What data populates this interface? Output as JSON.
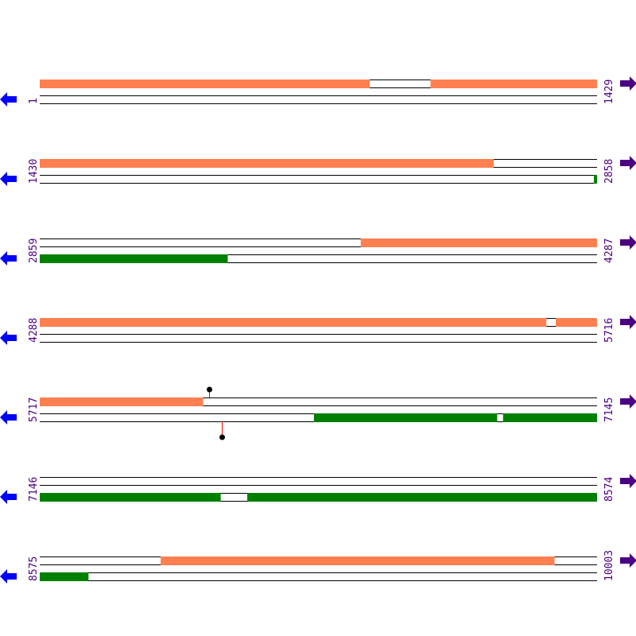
{
  "map": {
    "bp_per_row": 1429,
    "colors": {
      "forward": "#ff7f50",
      "reverse": "#008000",
      "label": "#4b0082",
      "left_arrow": "#0000ff",
      "right_arrow": "#4b0082",
      "lollipop": "#ff0000"
    },
    "rows": [
      {
        "start": "1",
        "end": "1429",
        "forward": [
          [
            1,
            846
          ],
          [
            1003,
            1429
          ]
        ],
        "reverse": []
      },
      {
        "start": "1430",
        "end": "2858",
        "forward": [
          [
            1430,
            2593
          ]
        ],
        "reverse": [
          [
            2851,
            2858
          ]
        ]
      },
      {
        "start": "2859",
        "end": "4287",
        "forward": [
          [
            3682,
            4287
          ]
        ],
        "reverse": [
          [
            2859,
            3340
          ]
        ]
      },
      {
        "start": "4288",
        "end": "5716",
        "forward": [
          [
            4288,
            5586
          ],
          [
            5611,
            5716
          ]
        ],
        "reverse": []
      },
      {
        "start": "5717",
        "end": "7145",
        "forward": [
          [
            5717,
            6135
          ]
        ],
        "reverse": [
          [
            6420,
            6889
          ],
          [
            6905,
            7145
          ]
        ],
        "lollipops": [
          {
            "strand": "forward",
            "pos": 6151
          },
          {
            "strand": "reverse",
            "pos": 6184
          }
        ]
      },
      {
        "start": "7146",
        "end": "8574",
        "forward": [],
        "reverse": [
          [
            7146,
            7609
          ],
          [
            7678,
            8574
          ]
        ]
      },
      {
        "start": "8575",
        "end": "10003",
        "forward": [
          [
            8885,
            9894
          ]
        ],
        "reverse": [
          [
            8575,
            8699
          ]
        ]
      }
    ],
    "icons": {
      "left": "arrow-left-icon",
      "right": "arrow-right-icon"
    }
  }
}
